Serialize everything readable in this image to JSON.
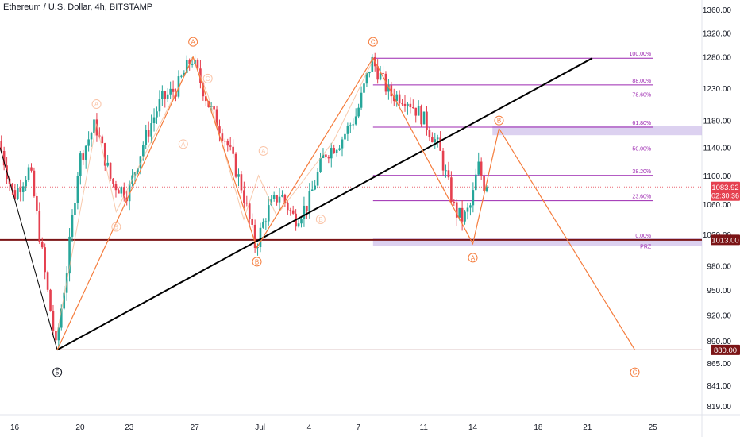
{
  "header": {
    "title": "Ethereum / U.S. Dollar, 4h, BITSTAMP"
  },
  "colors": {
    "bull": "#26a69a",
    "bear": "#e5404f",
    "wave": "#f57c3c",
    "fib": "#9c27b0",
    "trend": "#000000",
    "support": "#7b1416",
    "tag_current": "#e5404f",
    "tag_support": "#7b1416",
    "prz_fill": "#c9b8e8"
  },
  "chart_data": {
    "type": "candlestick",
    "symbol": "Ethereum / U.S. Dollar",
    "interval": "4h",
    "exchange": "BITSTAMP",
    "x_axis": {
      "ticks": [
        {
          "label": "16",
          "day": 16
        },
        {
          "label": "20",
          "day": 20
        },
        {
          "label": "23",
          "day": 23
        },
        {
          "label": "27",
          "day": 27
        },
        {
          "label": "Jul",
          "day": 31
        },
        {
          "label": "4",
          "day": 34
        },
        {
          "label": "7",
          "day": 37
        },
        {
          "label": "11",
          "day": 41
        },
        {
          "label": "14",
          "day": 44
        },
        {
          "label": "18",
          "day": 48
        },
        {
          "label": "21",
          "day": 51
        },
        {
          "label": "25",
          "day": 55
        }
      ]
    },
    "y_axis": {
      "scale": "log",
      "labels": [
        "1360.00",
        "1320.00",
        "1280.00",
        "1230.00",
        "1180.00",
        "1140.00",
        "1100.00",
        "1060.00",
        "1020.00",
        "980.00",
        "950.00",
        "920.00",
        "890.00",
        "865.00",
        "841.00",
        "819.00"
      ]
    },
    "ylim": [
      805,
      1370
    ],
    "xlim": [
      15.1,
      58.0
    ],
    "waypoints": [
      {
        "day": 15.1,
        "price": 1150
      },
      {
        "day": 16.0,
        "price": 1070
      },
      {
        "day": 17.0,
        "price": 1110
      },
      {
        "day": 18.0,
        "price": 960
      },
      {
        "day": 18.6,
        "price": 882
      },
      {
        "day": 19.3,
        "price": 980
      },
      {
        "day": 20.0,
        "price": 1120
      },
      {
        "day": 21.0,
        "price": 1175
      },
      {
        "day": 22.0,
        "price": 1090
      },
      {
        "day": 23.0,
        "price": 1075
      },
      {
        "day": 24.0,
        "price": 1150
      },
      {
        "day": 25.0,
        "price": 1210
      },
      {
        "day": 26.0,
        "price": 1230
      },
      {
        "day": 26.9,
        "price": 1278
      },
      {
        "day": 28.0,
        "price": 1200
      },
      {
        "day": 29.0,
        "price": 1150
      },
      {
        "day": 30.0,
        "price": 1080
      },
      {
        "day": 30.8,
        "price": 1003
      },
      {
        "day": 31.5,
        "price": 1050
      },
      {
        "day": 32.3,
        "price": 1075
      },
      {
        "day": 33.2,
        "price": 1040
      },
      {
        "day": 34.0,
        "price": 1060
      },
      {
        "day": 35.0,
        "price": 1130
      },
      {
        "day": 36.0,
        "price": 1150
      },
      {
        "day": 37.0,
        "price": 1190
      },
      {
        "day": 37.9,
        "price": 1275
      },
      {
        "day": 39.0,
        "price": 1220
      },
      {
        "day": 40.0,
        "price": 1215
      },
      {
        "day": 41.0,
        "price": 1185
      },
      {
        "day": 42.0,
        "price": 1140
      },
      {
        "day": 43.0,
        "price": 1050
      },
      {
        "day": 43.5,
        "price": 1040
      },
      {
        "day": 44.0,
        "price": 1060
      },
      {
        "day": 44.4,
        "price": 1115
      },
      {
        "day": 44.8,
        "price": 1084
      }
    ],
    "current_price": {
      "price": 1083.92,
      "label": "1083.92",
      "countdown": "02:30:36"
    },
    "support_line": {
      "price": 1013,
      "label": "1013.00"
    },
    "target_line": {
      "price": 880,
      "label": "880.00",
      "day_start": 18.6
    },
    "trendline": {
      "day1": 18.6,
      "price1": 880,
      "day2": 51.3,
      "price2": 1278
    },
    "fib_retracement": {
      "day_start": 37.9,
      "day_end": 55.0,
      "levels": [
        {
          "label": "100.00%",
          "price": 1278
        },
        {
          "label": "88.00%",
          "price": 1235
        },
        {
          "label": "78.60%",
          "price": 1213
        },
        {
          "label": "61.80%",
          "price": 1170
        },
        {
          "label": "50.00%",
          "price": 1132
        },
        {
          "label": "38.20%",
          "price": 1100
        },
        {
          "label": "23.60%",
          "price": 1065
        },
        {
          "label": "0.00%",
          "price": 1013
        }
      ],
      "zones": [
        {
          "label": "",
          "day_start": 45.2,
          "day_end": 58.0,
          "price_high": 1172,
          "price_low": 1158
        },
        {
          "label": "PRZ",
          "day_start": 37.9,
          "day_end": 58.0,
          "price_high": 1015,
          "price_low": 1005
        }
      ]
    },
    "wave_path": [
      {
        "day": 18.6,
        "price": 880
      },
      {
        "day": 26.9,
        "price": 1280
      },
      {
        "day": 30.8,
        "price": 1003
      },
      {
        "day": 37.9,
        "price": 1278
      },
      {
        "day": 44.0,
        "price": 1008
      },
      {
        "day": 45.6,
        "price": 1168
      },
      {
        "day": 53.9,
        "price": 880
      }
    ],
    "drop_line": [
      {
        "day": 15.1,
        "price": 1140
      },
      {
        "day": 18.6,
        "price": 880
      }
    ],
    "sub_wave_path": [
      {
        "day": 18.6,
        "price": 900
      },
      {
        "day": 21.0,
        "price": 1175
      },
      {
        "day": 22.2,
        "price": 1050
      },
      {
        "day": 26.9,
        "price": 1278
      },
      {
        "day": 27.8,
        "price": 1220
      },
      {
        "day": 30.0,
        "price": 1040
      },
      {
        "day": 30.9,
        "price": 1100
      },
      {
        "day": 32.0,
        "price": 1045
      },
      {
        "day": 35.5,
        "price": 1150
      },
      {
        "day": 37.9,
        "price": 1275
      }
    ],
    "wave_labels": [
      {
        "text": "5",
        "day": 18.6,
        "price": 855,
        "style": "dark"
      },
      {
        "text": "A",
        "day": 26.9,
        "price": 1305,
        "style": "solid"
      },
      {
        "text": "B",
        "day": 30.8,
        "price": 985,
        "style": "solid"
      },
      {
        "text": "C",
        "day": 37.9,
        "price": 1305,
        "style": "solid"
      },
      {
        "text": "A",
        "day": 44.0,
        "price": 990,
        "style": "solid"
      },
      {
        "text": "B",
        "day": 45.6,
        "price": 1180,
        "style": "solid"
      },
      {
        "text": "C",
        "day": 53.9,
        "price": 855,
        "style": "solid"
      },
      {
        "text": "A",
        "day": 21.0,
        "price": 1205,
        "style": "faint"
      },
      {
        "text": "B",
        "day": 22.2,
        "price": 1030,
        "style": "faint"
      },
      {
        "text": "C",
        "day": 27.8,
        "price": 1245,
        "style": "faint"
      },
      {
        "text": "A",
        "day": 26.3,
        "price": 1145,
        "style": "faint"
      },
      {
        "text": "A",
        "day": 31.2,
        "price": 1135,
        "style": "faint"
      },
      {
        "text": "B",
        "day": 34.7,
        "price": 1040,
        "style": "faint"
      }
    ]
  }
}
